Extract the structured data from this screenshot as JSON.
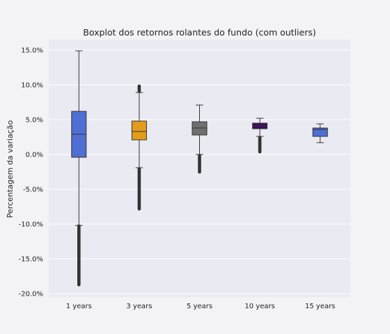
{
  "chart_data": {
    "type": "box",
    "title": "Boxplot dos retornos rolantes do fundo (com outliers)",
    "xlabel": "",
    "ylabel": "Percentagem da variação",
    "ylim": [
      -20.5,
      16.5
    ],
    "yticks": [
      15,
      10,
      5,
      0,
      -5,
      -10,
      -15,
      -20
    ],
    "ytick_labels": [
      "15.0%",
      "10.0%",
      "5.0%",
      "0.0%",
      "-5.0%",
      "-10.0%",
      "-15.0%",
      "-20.0%"
    ],
    "grid": true,
    "categories": [
      "1 years",
      "3 years",
      "5 years",
      "10 years",
      "15 years"
    ],
    "boxes": [
      {
        "category": "1 years",
        "whisker_low": -10.2,
        "q1": -0.4,
        "median": 2.9,
        "q3": 6.2,
        "whisker_high": 14.9,
        "outliers_low": [
          -18.8,
          -10.2
        ],
        "outliers_high": [],
        "color": "#4f6fd3"
      },
      {
        "category": "3 years",
        "whisker_low": -1.9,
        "q1": 2.1,
        "median": 3.3,
        "q3": 4.8,
        "whisker_high": 8.9,
        "outliers_low": [
          -7.9,
          -2.0
        ],
        "outliers_high": [
          9.0,
          9.9
        ],
        "color": "#e29d1c"
      },
      {
        "category": "5 years",
        "whisker_low": 0.0,
        "q1": 2.8,
        "median": 3.8,
        "q3": 4.7,
        "whisker_high": 7.1,
        "outliers_low": [
          -2.6,
          -0.1
        ],
        "outliers_high": [],
        "color": "#707070"
      },
      {
        "category": "10 years",
        "whisker_low": 2.6,
        "q1": 3.7,
        "median": 4.1,
        "q3": 4.5,
        "whisker_high": 5.2,
        "outliers_low": [
          0.3,
          2.5
        ],
        "outliers_high": [],
        "color": "#3c0e5e"
      },
      {
        "category": "15 years",
        "whisker_low": 1.7,
        "q1": 2.6,
        "median": 3.6,
        "q3": 3.8,
        "whisker_high": 4.4,
        "outliers_low": [],
        "outliers_high": [],
        "color": "#4f6fd3"
      }
    ]
  }
}
